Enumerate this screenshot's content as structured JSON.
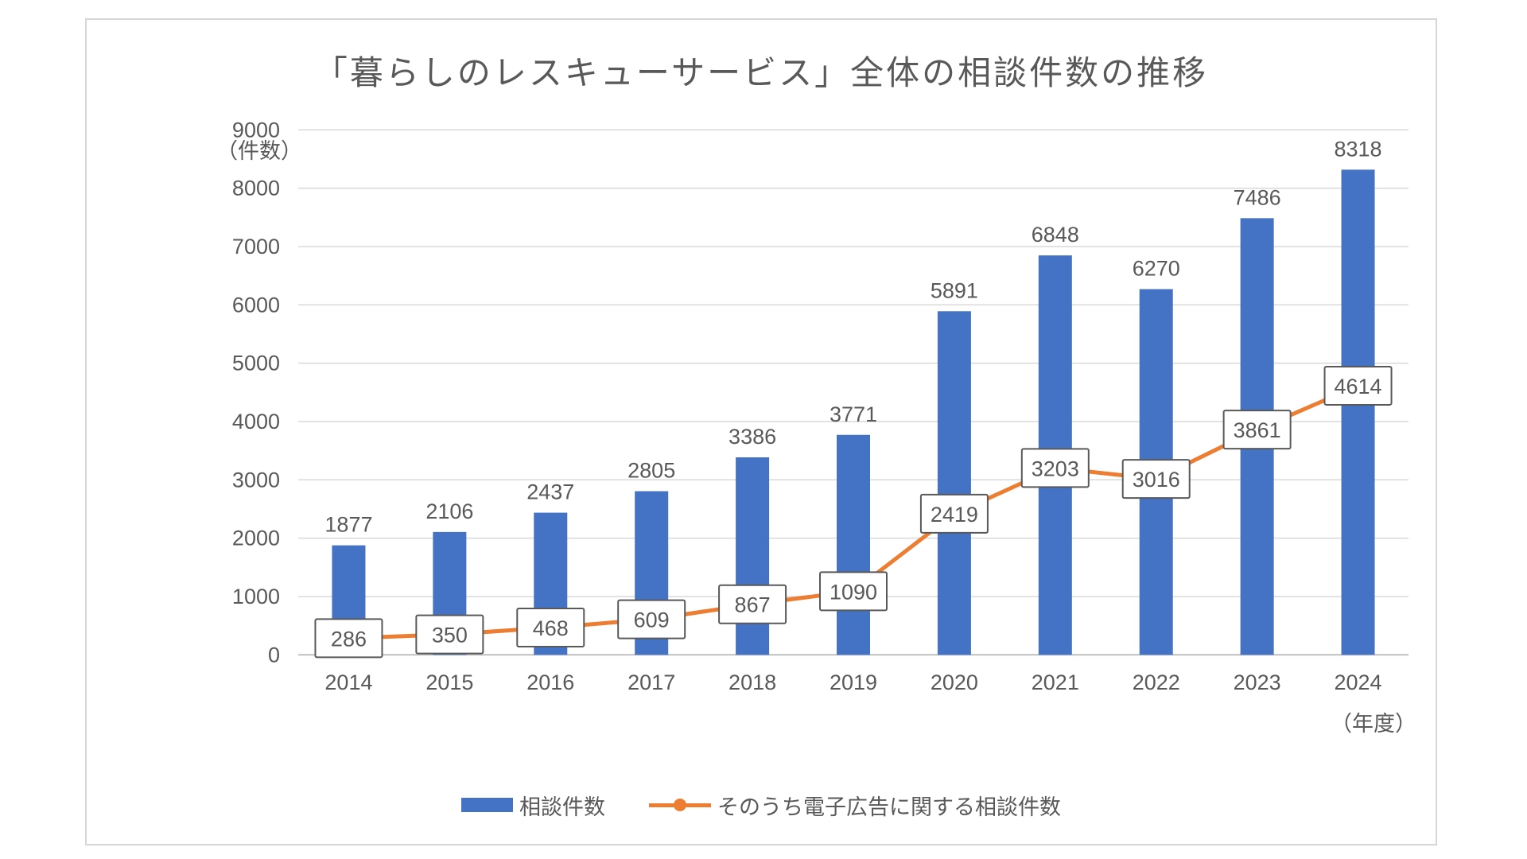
{
  "page": {
    "background": "#ffffff",
    "frame_border_color": "#d6d6d6"
  },
  "chart_data": {
    "type": "bar",
    "subtype": "bar-line-combo",
    "title": "「暮らしのレスキューサービス」全体の相談件数の推移",
    "categories": [
      "2014",
      "2015",
      "2016",
      "2017",
      "2018",
      "2019",
      "2020",
      "2021",
      "2022",
      "2023",
      "2024"
    ],
    "series": [
      {
        "name": "相談件数",
        "type": "bar",
        "color": "#4472C4",
        "values": [
          1877,
          2106,
          2437,
          2805,
          3386,
          3771,
          5891,
          6848,
          6270,
          7486,
          8318
        ],
        "data_labels": "plain-above-bar"
      },
      {
        "name": "そのうち電子広告に関する相談件数",
        "type": "line",
        "color": "#ED7D31",
        "values": [
          286,
          350,
          468,
          609,
          867,
          1090,
          2419,
          3203,
          3016,
          3861,
          4614
        ],
        "data_labels": "boxed-on-point"
      }
    ],
    "ylim": [
      0,
      9000
    ],
    "ytick_step": 1000,
    "y_unit_label": "（件数）",
    "x_unit_label": "（年度）",
    "grid": true,
    "gridline_color": "#d9d9d9",
    "axis_line_color": "#bfbfbf",
    "text_color": "#595959",
    "label_box_fill": "#ffffff",
    "label_box_border": "#595959",
    "legend_position": "bottom"
  }
}
